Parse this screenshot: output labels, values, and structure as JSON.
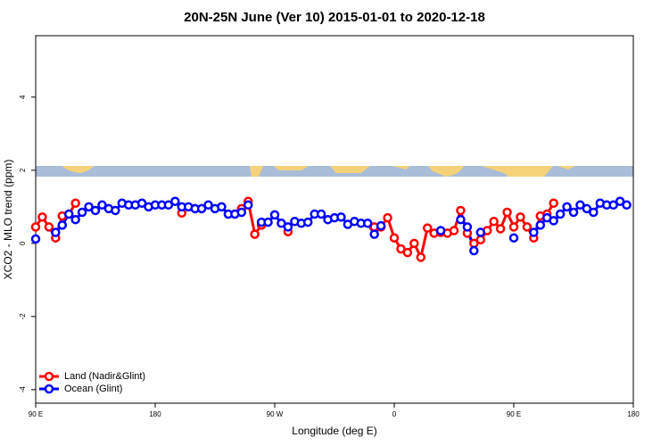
{
  "chart_data": {
    "type": "line",
    "title": "20N-25N June (Ver 10)   2015-01-01 to 2020-12-18",
    "x_label": "Longitude (deg E)",
    "y_label": "XCO2 - MLO trend (ppm)",
    "x": [
      90,
      95,
      100,
      105,
      110,
      115,
      120,
      125,
      130,
      135,
      140,
      145,
      150,
      155,
      160,
      165,
      170,
      175,
      180,
      185,
      190,
      195,
      200,
      205,
      210,
      215,
      220,
      225,
      230,
      235,
      240,
      245,
      250,
      255,
      260,
      265,
      270,
      275,
      280,
      285,
      290,
      295,
      300,
      305,
      310,
      315,
      320,
      325,
      330,
      335,
      340,
      345,
      350,
      355,
      360,
      365,
      370,
      375,
      380,
      385,
      390,
      395,
      400,
      405,
      410,
      415,
      420,
      425,
      430,
      435,
      440,
      445,
      450,
      455,
      460,
      465,
      470,
      475,
      480,
      485,
      490,
      495,
      500,
      505,
      510,
      515,
      520,
      525,
      530,
      535,
      540
    ],
    "series": [
      {
        "name": "Land (Nadir&Glint)",
        "color": "#ff0000",
        "values": [
          0.45,
          0.72,
          0.45,
          0.15,
          0.75,
          0.8,
          1.1,
          null,
          null,
          null,
          null,
          null,
          null,
          null,
          null,
          null,
          null,
          null,
          null,
          null,
          null,
          null,
          0.83,
          null,
          null,
          null,
          null,
          null,
          null,
          null,
          null,
          0.95,
          1.15,
          0.25,
          0.5,
          null,
          null,
          null,
          0.32,
          null,
          null,
          null,
          null,
          null,
          null,
          null,
          null,
          null,
          null,
          null,
          null,
          0.45,
          0.45,
          0.7,
          0.15,
          -0.15,
          -0.25,
          0.0,
          -0.38,
          0.42,
          0.28,
          0.3,
          0.28,
          0.35,
          0.9,
          0.28,
          0.0,
          0.1,
          0.35,
          0.6,
          0.4,
          0.85,
          0.45,
          0.72,
          0.45,
          0.15,
          0.75,
          0.8,
          1.1,
          null,
          null,
          null,
          null,
          null,
          null,
          null,
          null,
          null,
          null,
          null,
          null
        ]
      },
      {
        "name": "Ocean (Glint)",
        "color": "#0000ff",
        "values": [
          0.12,
          null,
          null,
          0.3,
          0.5,
          0.8,
          0.65,
          0.85,
          1.0,
          0.9,
          1.05,
          0.95,
          0.9,
          1.1,
          1.05,
          1.05,
          1.1,
          1.0,
          1.05,
          1.05,
          1.05,
          1.15,
          1.0,
          1.0,
          0.95,
          0.95,
          1.05,
          0.95,
          1.0,
          0.8,
          0.8,
          0.85,
          1.05,
          null,
          0.58,
          0.58,
          0.78,
          0.55,
          0.45,
          0.6,
          0.55,
          0.58,
          0.8,
          0.8,
          0.65,
          0.7,
          0.72,
          0.52,
          0.6,
          0.55,
          0.55,
          0.25,
          0.48,
          null,
          null,
          null,
          null,
          null,
          null,
          null,
          null,
          0.35,
          null,
          null,
          0.65,
          0.45,
          -0.2,
          0.3,
          null,
          null,
          null,
          null,
          0.15,
          null,
          null,
          0.3,
          0.5,
          0.7,
          0.62,
          0.8,
          1.0,
          0.85,
          1.05,
          0.95,
          0.85,
          1.1,
          1.05,
          1.05,
          1.15,
          1.05,
          null
        ]
      }
    ],
    "xlim": [
      90,
      540
    ],
    "xticks": [
      {
        "value": 90,
        "label": "90 E"
      },
      180,
      {
        "value": 270,
        "label": "90 W"
      },
      {
        "value": 360,
        "label": "0"
      },
      {
        "value": 450,
        "label": "90 E"
      },
      {
        "value": 540,
        "label": "180"
      }
    ],
    "ylim": [
      -4.37,
      5.68
    ],
    "yticks": [
      4,
      2,
      0,
      -2,
      -4
    ],
    "legend": "lower left"
  }
}
